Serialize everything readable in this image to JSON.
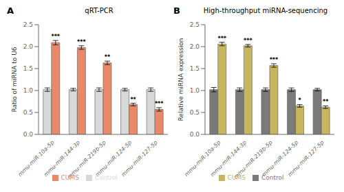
{
  "chart_data": [
    {
      "type": "bar",
      "panel_label": "A",
      "title": "qRT-PCR",
      "y_label": "Ratio of miRNA to U6",
      "categories": [
        "mmu-miR-10a-5p",
        "mmu-miR-144-3p",
        "mmu-miR-219b-5p",
        "mmu-miR-124-5p",
        "mmu-miR-127-5p"
      ],
      "series": [
        {
          "name": "Control",
          "color": "#d8d8d8",
          "values": [
            1.02,
            1.02,
            1.02,
            1.02,
            1.02
          ],
          "errors": [
            0.04,
            0.03,
            0.04,
            0.03,
            0.04
          ]
        },
        {
          "name": "CUMS",
          "color": "#E8896A",
          "values": [
            2.09,
            1.98,
            1.63,
            0.68,
            0.57
          ],
          "errors": [
            0.05,
            0.04,
            0.04,
            0.03,
            0.04
          ],
          "annotations": [
            "***",
            "***",
            "**",
            "**",
            "***"
          ]
        }
      ],
      "ylim": [
        0,
        2.5
      ],
      "yticks": [
        {
          "value": 0,
          "label": "0.0"
        },
        0.5,
        {
          "value": 1,
          "label": "1.0"
        },
        1.5,
        {
          "value": 2,
          "label": "2.0"
        },
        2.5
      ],
      "grid": false,
      "legend": "bottom"
    },
    {
      "type": "bar",
      "panel_label": "B",
      "title": "High-throughput miRNA-sequencing",
      "y_label": "Relative miRNA expression",
      "categories": [
        "mmu-miR-10a-5p",
        "mmu-miR-144-3p",
        "mmu-miR-219b-5p",
        "mmu-miR-124-5p",
        "mmu-miR-127-5p"
      ],
      "series": [
        {
          "name": "Control",
          "color": "#7a7a7a",
          "values": [
            1.02,
            1.02,
            1.02,
            1.02,
            1.02
          ],
          "errors": [
            0.05,
            0.04,
            0.04,
            0.04,
            0.03
          ]
        },
        {
          "name": "CUMS",
          "color": "#c8b560",
          "values": [
            2.06,
            2.02,
            1.57,
            0.65,
            0.62
          ],
          "errors": [
            0.04,
            0.03,
            0.04,
            0.03,
            0.03
          ],
          "annotations": [
            "***",
            "***",
            "***",
            "*",
            "**"
          ]
        }
      ],
      "ylim": [
        0,
        2.5
      ],
      "yticks": [
        {
          "value": 0,
          "label": "0.0"
        },
        0.5,
        {
          "value": 1,
          "label": "1.0"
        },
        1.5,
        {
          "value": 2,
          "label": "2.0"
        },
        2.5
      ],
      "grid": false,
      "legend": "bottom"
    }
  ]
}
